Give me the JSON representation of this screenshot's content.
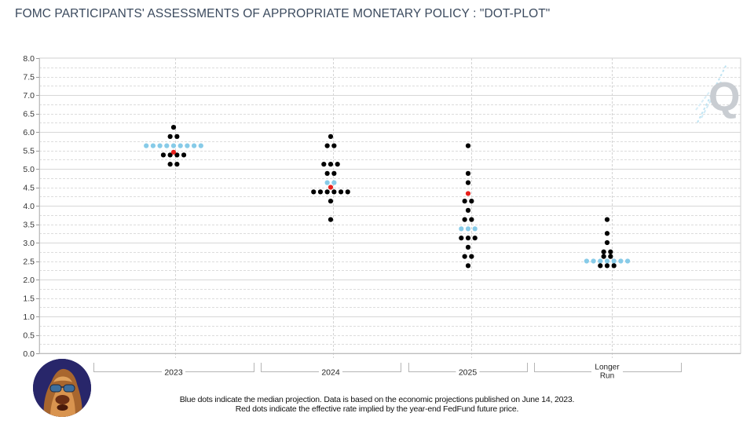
{
  "title": "FOMC PARTICIPANTS' ASSESSMENTS OF APPROPRIATE MONETARY POLICY : \"DOT-PLOT\"",
  "footer": {
    "line1": "Blue dots indicate the median projection. Data is based on the economic projections published on June 14, 2023.",
    "line2": "Red dots indicate the effective rate implied by the year-end FedFund future price."
  },
  "watermark": "Q",
  "colors": {
    "participant_dot": "#000000",
    "median_dot": "#87cbe8",
    "futures_dot": "#e8201c",
    "title": "#3b4a5e",
    "grid": "#d9d9d9"
  },
  "chart_data": {
    "type": "scatter",
    "title": "FOMC PARTICIPANTS' ASSESSMENTS OF APPROPRIATE MONETARY POLICY : \"DOT-PLOT\"",
    "xlabel": "",
    "ylabel": "",
    "ylim": [
      0,
      8
    ],
    "yticks": [
      "0.0",
      "0.5",
      "1.0",
      "1.5",
      "2.0",
      "2.5",
      "3.0",
      "3.5",
      "4.0",
      "4.5",
      "5.0",
      "5.5",
      "6.0",
      "6.5",
      "7.0",
      "7.5",
      "8.0"
    ],
    "grid": true,
    "categories": [
      "2023",
      "2024",
      "2025",
      "Longer Run"
    ],
    "category_labels": [
      [
        "2023"
      ],
      [
        "2024"
      ],
      [
        "2025"
      ],
      [
        "Longer",
        "Run"
      ]
    ],
    "series": [
      {
        "name": "2023",
        "participants": [
          {
            "rate": 6.125,
            "count": 1
          },
          {
            "rate": 5.875,
            "count": 2
          },
          {
            "rate": 5.625,
            "count": 9,
            "median": true
          },
          {
            "rate": 5.375,
            "count": 4
          },
          {
            "rate": 5.125,
            "count": 2
          }
        ],
        "futures_rate": 5.45
      },
      {
        "name": "2024",
        "participants": [
          {
            "rate": 5.875,
            "count": 1
          },
          {
            "rate": 5.625,
            "count": 2
          },
          {
            "rate": 5.125,
            "count": 3
          },
          {
            "rate": 4.875,
            "count": 2
          },
          {
            "rate": 4.625,
            "count": 2,
            "median": true
          },
          {
            "rate": 4.375,
            "count": 6
          },
          {
            "rate": 4.125,
            "count": 1
          },
          {
            "rate": 3.625,
            "count": 1
          }
        ],
        "futures_rate": 4.5
      },
      {
        "name": "2025",
        "participants": [
          {
            "rate": 5.625,
            "count": 1
          },
          {
            "rate": 4.875,
            "count": 1
          },
          {
            "rate": 4.625,
            "count": 1
          },
          {
            "rate": 4.125,
            "count": 2
          },
          {
            "rate": 3.875,
            "count": 1
          },
          {
            "rate": 3.625,
            "count": 2
          },
          {
            "rate": 3.375,
            "count": 3,
            "median": true
          },
          {
            "rate": 3.125,
            "count": 3
          },
          {
            "rate": 2.875,
            "count": 1
          },
          {
            "rate": 2.625,
            "count": 2
          },
          {
            "rate": 2.375,
            "count": 1
          }
        ],
        "futures_rate": 4.33
      },
      {
        "name": "Longer Run",
        "participants": [
          {
            "rate": 3.625,
            "count": 1
          },
          {
            "rate": 3.25,
            "count": 1
          },
          {
            "rate": 3.0,
            "count": 1
          },
          {
            "rate": 2.75,
            "count": 2
          },
          {
            "rate": 2.625,
            "count": 2
          },
          {
            "rate": 2.5,
            "count": 7,
            "median": true
          },
          {
            "rate": 2.375,
            "count": 3
          }
        ],
        "futures_rate": null
      }
    ]
  }
}
